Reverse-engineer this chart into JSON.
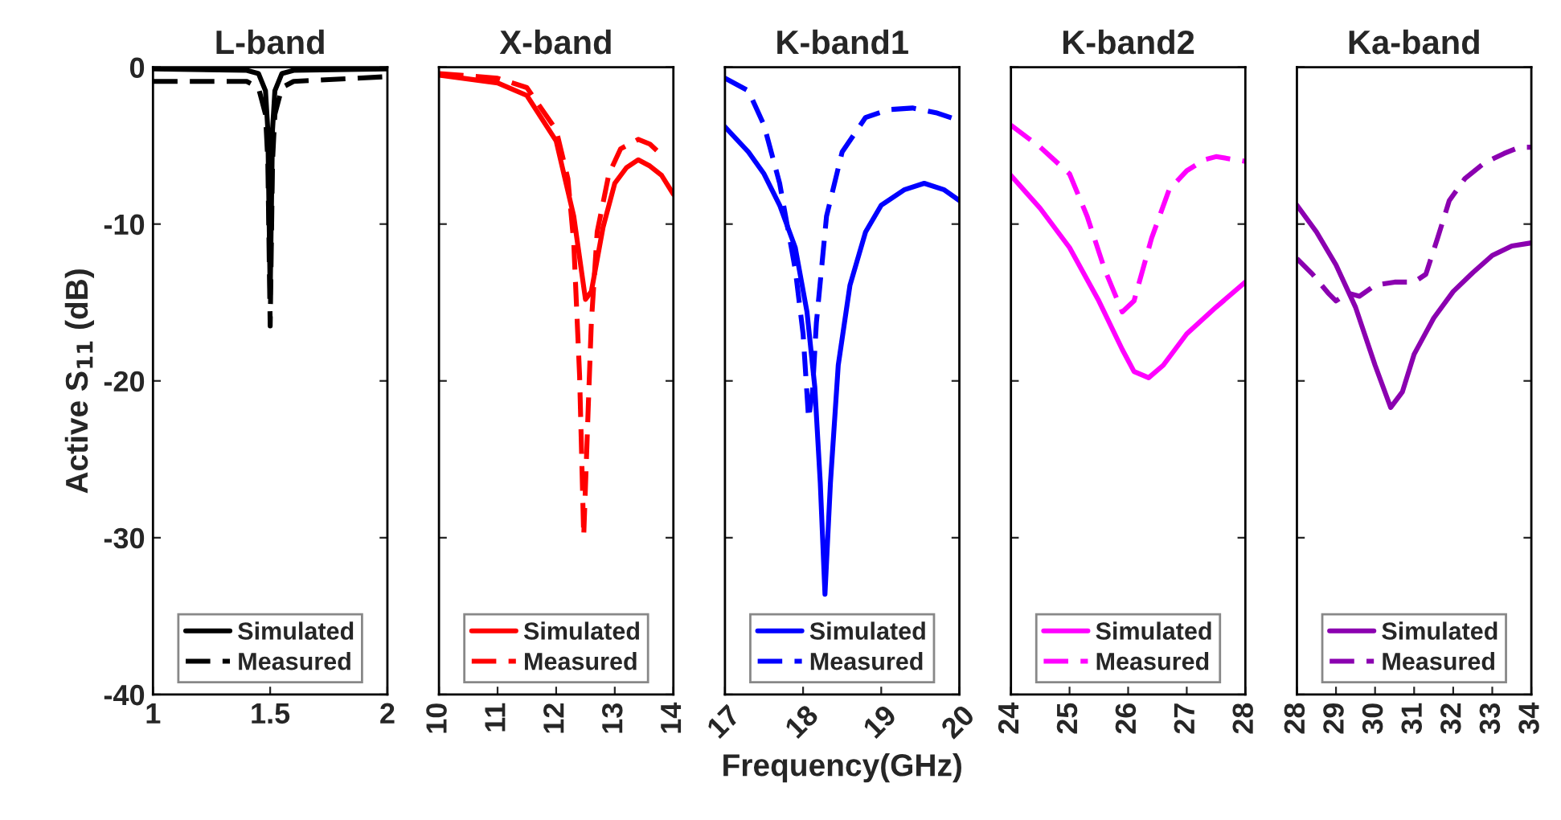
{
  "chart_data": [
    {
      "type": "line",
      "title": "L-band",
      "ylabel": "Active S$_{11}$ (dB)",
      "xlim": [
        1,
        2
      ],
      "xticks": [
        1,
        1.5,
        2
      ],
      "ylim": [
        -40,
        0
      ],
      "yticks": [
        0,
        -10,
        -20,
        -30,
        -40
      ],
      "grid": false,
      "legend": "bottom",
      "series": [
        {
          "name": "Simulated",
          "color": "#000000",
          "line_style": "solid",
          "x": [
            1,
            1.4,
            1.45,
            1.48,
            1.49,
            1.5,
            1.51,
            1.52,
            1.55,
            1.6,
            2
          ],
          "values": [
            -0.1,
            -0.2,
            -0.4,
            -1.5,
            -4,
            -14.5,
            -4,
            -1.5,
            -0.4,
            -0.2,
            -0.1
          ]
        },
        {
          "name": "Measured",
          "color": "#000000",
          "line_style": "dashed",
          "x": [
            1,
            1.4,
            1.45,
            1.48,
            1.49,
            1.5,
            1.51,
            1.52,
            1.55,
            1.6,
            2
          ],
          "values": [
            -0.9,
            -0.9,
            -1.3,
            -3,
            -6,
            -16.5,
            -6,
            -3,
            -1.3,
            -0.9,
            -0.6
          ]
        }
      ]
    },
    {
      "type": "line",
      "title": "X-band",
      "xlim": [
        10,
        14
      ],
      "xticks": [
        10,
        11,
        12,
        13,
        14
      ],
      "ylim": [
        -40,
        0
      ],
      "yticks": [
        0,
        -10,
        -20,
        -30,
        -40
      ],
      "tick_labels": "x",
      "grid": false,
      "legend": "bottom",
      "series": [
        {
          "name": "Simulated",
          "color": "#ff0000",
          "line_style": "solid",
          "x": [
            10,
            11,
            11.5,
            12,
            12.3,
            12.5,
            12.6,
            12.8,
            13,
            13.2,
            13.4,
            13.6,
            13.8,
            14
          ],
          "values": [
            -0.5,
            -1,
            -1.8,
            -4.7,
            -9.5,
            -14.8,
            -14.3,
            -10.2,
            -7.4,
            -6.4,
            -5.9,
            -6.3,
            -6.9,
            -8.1
          ]
        },
        {
          "name": "Measured",
          "color": "#ff0000",
          "line_style": "dashed",
          "x": [
            10,
            11,
            11.5,
            12,
            12.2,
            12.3,
            12.4,
            12.47,
            12.55,
            12.6,
            12.7,
            12.9,
            13.1,
            13.4,
            13.6,
            13.8
          ],
          "values": [
            -0.4,
            -0.7,
            -1.3,
            -4,
            -7.1,
            -11.2,
            -19.7,
            -29.9,
            -21.4,
            -16.3,
            -10.5,
            -6.8,
            -5.2,
            -4.6,
            -4.9,
            -5.6
          ]
        }
      ]
    },
    {
      "type": "line",
      "title": "K-band1",
      "xlabel": "Frequency(GHz)",
      "xlim": [
        17,
        20
      ],
      "xticks": [
        17,
        18,
        19,
        20
      ],
      "ylim": [
        -40,
        0
      ],
      "yticks": [
        0,
        -10,
        -20,
        -30,
        -40
      ],
      "tick_labels": "x",
      "grid": false,
      "legend": "bottom",
      "series": [
        {
          "name": "Simulated",
          "color": "#0000ff",
          "line_style": "solid",
          "x": [
            17,
            17.3,
            17.5,
            17.7,
            17.9,
            18.05,
            18.15,
            18.22,
            18.28,
            18.35,
            18.45,
            18.6,
            18.8,
            19,
            19.3,
            19.55,
            19.8,
            20
          ],
          "values": [
            -3.8,
            -5.4,
            -6.8,
            -8.8,
            -11.5,
            -15.6,
            -20.4,
            -26.5,
            -33.6,
            -26.5,
            -19,
            -13.9,
            -10.5,
            -8.8,
            -7.8,
            -7.4,
            -7.8,
            -8.5
          ]
        },
        {
          "name": "Measured",
          "color": "#0000ff",
          "line_style": "dashed",
          "x": [
            17,
            17.3,
            17.5,
            17.7,
            17.9,
            18,
            18.07,
            18.12,
            18.17,
            18.3,
            18.5,
            18.8,
            19.1,
            19.4,
            19.7,
            20
          ],
          "values": [
            -0.7,
            -1.5,
            -3.7,
            -7.4,
            -12.9,
            -17,
            -22.4,
            -20.7,
            -16.3,
            -9.5,
            -5.4,
            -3.2,
            -2.7,
            -2.6,
            -2.9,
            -3.4
          ]
        }
      ]
    },
    {
      "type": "line",
      "title": "K-band2",
      "xlim": [
        24,
        28
      ],
      "xticks": [
        24,
        25,
        26,
        27,
        28
      ],
      "ylim": [
        -40,
        0
      ],
      "yticks": [
        0,
        -10,
        -20,
        -30,
        -40
      ],
      "tick_labels": "x",
      "grid": false,
      "legend": "bottom",
      "series": [
        {
          "name": "Simulated",
          "color": "#ff00ff",
          "line_style": "solid",
          "x": [
            24,
            24.5,
            25,
            25.5,
            25.9,
            26.1,
            26.35,
            26.6,
            27,
            27.5,
            28
          ],
          "values": [
            -6.9,
            -9,
            -11.5,
            -14.9,
            -18,
            -19.4,
            -19.8,
            -19,
            -17,
            -15.3,
            -13.7
          ]
        },
        {
          "name": "Measured",
          "color": "#ff00ff",
          "line_style": "dashed",
          "x": [
            24,
            24.5,
            25,
            25.3,
            25.6,
            25.9,
            26.1,
            26.4,
            26.7,
            27,
            27.3,
            27.5,
            28
          ],
          "values": [
            -3.7,
            -5.1,
            -6.8,
            -9.5,
            -12.9,
            -15.6,
            -14.9,
            -10.9,
            -7.8,
            -6.6,
            -5.9,
            -5.7,
            -6
          ]
        }
      ]
    },
    {
      "type": "line",
      "title": "Ka-band",
      "xlim": [
        28,
        34
      ],
      "xticks": [
        28,
        29,
        30,
        31,
        32,
        33,
        34
      ],
      "ylim": [
        -40,
        0
      ],
      "yticks": [
        0,
        -10,
        -20,
        -30,
        -40
      ],
      "tick_labels": "x",
      "grid": false,
      "legend": "bottom",
      "series": [
        {
          "name": "Simulated",
          "color": "#8b00b0",
          "line_style": "solid",
          "x": [
            28,
            28.5,
            29,
            29.5,
            30,
            30.4,
            30.7,
            31,
            31.5,
            32,
            32.5,
            33,
            33.5,
            34
          ],
          "values": [
            -8.8,
            -10.5,
            -12.6,
            -15.3,
            -19,
            -21.7,
            -20.7,
            -18.3,
            -16,
            -14.3,
            -13.1,
            -12,
            -11.4,
            -11.2
          ]
        },
        {
          "name": "Measured",
          "color": "#8b00b0",
          "line_style": "dashed",
          "x": [
            28,
            28.4,
            28.8,
            29,
            29.3,
            29.6,
            30,
            30.5,
            31,
            31.3,
            31.6,
            31.9,
            32.3,
            32.8,
            33.3,
            33.7,
            34
          ],
          "values": [
            -12.2,
            -13.2,
            -14.4,
            -14.9,
            -14.4,
            -14.6,
            -13.9,
            -13.7,
            -13.7,
            -13.2,
            -10.9,
            -8.5,
            -7.1,
            -6.1,
            -5.5,
            -5.1,
            -5.1
          ]
        }
      ]
    }
  ]
}
